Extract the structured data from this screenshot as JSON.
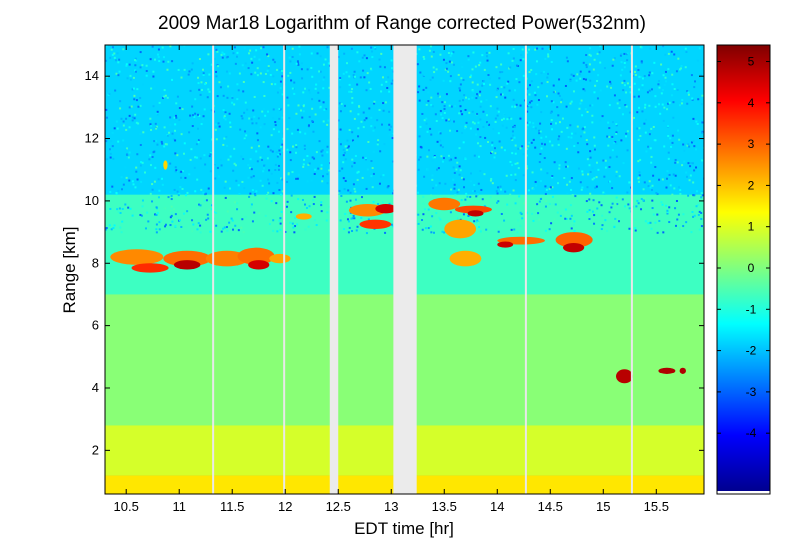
{
  "chart_data": {
    "type": "heatmap",
    "title": "2009 Mar18  Logarithm of Range corrected Power(532nm)",
    "xlabel": "EDT time [hr]",
    "ylabel": "Range [km]",
    "xlim": [
      10.3,
      15.95
    ],
    "ylim": [
      0.6,
      15.0
    ],
    "x_ticks": [
      "10.5",
      "11",
      "11.5",
      "12",
      "12.5",
      "13",
      "13.5",
      "14",
      "14.5",
      "15",
      "15.5"
    ],
    "x_tick_values": [
      10.5,
      11,
      11.5,
      12,
      12.5,
      13,
      13.5,
      14,
      14.5,
      15,
      15.5
    ],
    "y_ticks": [
      "2",
      "4",
      "6",
      "8",
      "10",
      "12",
      "14"
    ],
    "y_tick_values": [
      2,
      4,
      6,
      8,
      10,
      12,
      14
    ],
    "colorbar": {
      "range": [
        -5.4,
        5.4
      ],
      "ticks": [
        "-4",
        "-3",
        "-2",
        "-1",
        "0",
        "1",
        "2",
        "3",
        "4",
        "5"
      ],
      "tick_values": [
        -4,
        -3,
        -2,
        -1,
        0,
        1,
        2,
        3,
        4,
        5
      ],
      "colormap": "jet"
    },
    "no_data_gaps": [
      {
        "start": 12.42,
        "end": 12.5
      },
      {
        "start": 13.02,
        "end": 13.24
      }
    ],
    "thin_gap_lines": [
      11.32,
      11.99,
      14.27,
      15.27
    ],
    "layers": [
      {
        "name": "background_high_altitude",
        "x": [
          10.3,
          15.95
        ],
        "y": [
          9.2,
          15.0
        ],
        "value": -1.8
      },
      {
        "name": "noise_transition",
        "x": [
          10.3,
          15.95
        ],
        "y": [
          7.0,
          10.2
        ],
        "value": -0.7
      },
      {
        "name": "free_troposphere",
        "x": [
          10.3,
          15.95
        ],
        "y": [
          2.8,
          7.0
        ],
        "value": 0.1
      },
      {
        "name": "boundary_layer_upper",
        "x": [
          10.3,
          15.95
        ],
        "y": [
          1.2,
          2.8
        ],
        "value": 0.9
      },
      {
        "name": "boundary_layer_surface",
        "x": [
          10.3,
          15.95
        ],
        "y": [
          0.6,
          1.2
        ],
        "value": 1.6
      }
    ],
    "cloud_features": [
      {
        "x": 10.35,
        "y": 7.95,
        "w": 0.5,
        "h": 0.5,
        "value": 2.6
      },
      {
        "x": 10.55,
        "y": 7.7,
        "w": 0.35,
        "h": 0.3,
        "value": 3.6
      },
      {
        "x": 10.85,
        "y": 7.9,
        "w": 0.45,
        "h": 0.5,
        "value": 2.9
      },
      {
        "x": 10.95,
        "y": 7.8,
        "w": 0.25,
        "h": 0.3,
        "value": 4.8
      },
      {
        "x": 11.25,
        "y": 7.9,
        "w": 0.4,
        "h": 0.5,
        "value": 2.7
      },
      {
        "x": 11.55,
        "y": 7.95,
        "w": 0.35,
        "h": 0.55,
        "value": 2.9
      },
      {
        "x": 11.65,
        "y": 7.8,
        "w": 0.2,
        "h": 0.3,
        "value": 4.5
      },
      {
        "x": 11.85,
        "y": 8.0,
        "w": 0.2,
        "h": 0.3,
        "value": 2.3
      },
      {
        "x": 12.1,
        "y": 9.4,
        "w": 0.15,
        "h": 0.2,
        "value": 2.2
      },
      {
        "x": 12.6,
        "y": 9.5,
        "w": 0.35,
        "h": 0.4,
        "value": 2.6
      },
      {
        "x": 12.7,
        "y": 9.1,
        "w": 0.3,
        "h": 0.3,
        "value": 3.5
      },
      {
        "x": 12.85,
        "y": 9.6,
        "w": 0.2,
        "h": 0.3,
        "value": 4.5
      },
      {
        "x": 13.35,
        "y": 9.7,
        "w": 0.3,
        "h": 0.4,
        "value": 2.8
      },
      {
        "x": 13.5,
        "y": 8.8,
        "w": 0.3,
        "h": 0.6,
        "value": 2.3
      },
      {
        "x": 13.6,
        "y": 9.6,
        "w": 0.35,
        "h": 0.25,
        "value": 3.3
      },
      {
        "x": 13.72,
        "y": 9.5,
        "w": 0.15,
        "h": 0.2,
        "value": 4.7
      },
      {
        "x": 13.55,
        "y": 7.9,
        "w": 0.3,
        "h": 0.5,
        "value": 2.2
      },
      {
        "x": 14.0,
        "y": 8.6,
        "w": 0.45,
        "h": 0.25,
        "value": 2.9
      },
      {
        "x": 14.0,
        "y": 8.5,
        "w": 0.15,
        "h": 0.2,
        "value": 4.6
      },
      {
        "x": 14.55,
        "y": 8.5,
        "w": 0.35,
        "h": 0.5,
        "value": 3.0
      },
      {
        "x": 14.62,
        "y": 8.35,
        "w": 0.2,
        "h": 0.3,
        "value": 4.7
      },
      {
        "x": 15.12,
        "y": 4.15,
        "w": 0.16,
        "h": 0.45,
        "value": 4.8
      },
      {
        "x": 15.52,
        "y": 4.45,
        "w": 0.16,
        "h": 0.2,
        "value": 4.9
      },
      {
        "x": 15.72,
        "y": 4.45,
        "w": 0.06,
        "h": 0.2,
        "value": 4.9
      },
      {
        "x": 10.85,
        "y": 11.0,
        "w": 0.04,
        "h": 0.3,
        "value": 1.8
      }
    ]
  }
}
